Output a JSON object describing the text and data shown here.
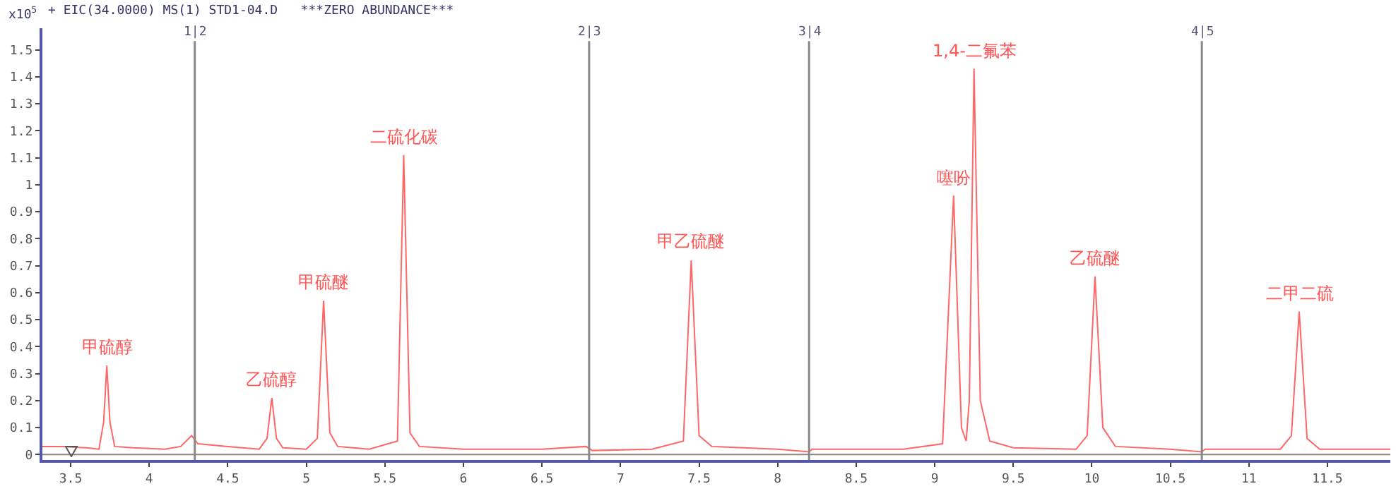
{
  "chart_data": {
    "type": "line",
    "title": "+ EIC(34.0000) MS(1) STD1-04.D   ***ZERO ABUNDANCE***",
    "ylabel": "x10$^{5}$",
    "xlim": [
      3.32,
      11.9
    ],
    "xticks": [
      3.5,
      4,
      4.5,
      5,
      5.5,
      6,
      6.5,
      7,
      7.5,
      8,
      8.5,
      9,
      9.5,
      10,
      10.5,
      11,
      11.5
    ],
    "ylim": [
      -0.02,
      1.58
    ],
    "yticks": [
      0,
      0.1,
      0.2,
      0.3,
      0.4,
      0.5,
      0.6,
      0.7,
      0.8,
      0.9,
      1,
      1.1,
      1.2,
      1.3,
      1.4,
      1.5
    ],
    "grid": false,
    "series": [
      {
        "color": "#ff6666",
        "x": [
          3.32,
          3.45,
          3.6,
          3.68,
          3.71,
          3.73,
          3.75,
          3.78,
          3.9,
          4.1,
          4.2,
          4.27,
          4.31,
          4.5,
          4.7,
          4.75,
          4.78,
          4.81,
          4.85,
          5.0,
          5.07,
          5.11,
          5.15,
          5.2,
          5.4,
          5.58,
          5.62,
          5.66,
          5.72,
          6.0,
          6.5,
          6.78,
          6.82,
          7.2,
          7.4,
          7.45,
          7.5,
          7.58,
          8.0,
          8.2,
          8.22,
          8.8,
          9.05,
          9.12,
          9.17,
          9.2,
          9.22,
          9.25,
          9.29,
          9.35,
          9.5,
          9.9,
          9.97,
          10.02,
          10.07,
          10.15,
          10.5,
          10.7,
          10.72,
          11.2,
          11.27,
          11.32,
          11.37,
          11.45,
          11.9
        ],
        "values": [
          0.03,
          0.03,
          0.025,
          0.02,
          0.12,
          0.33,
          0.12,
          0.03,
          0.025,
          0.02,
          0.03,
          0.07,
          0.04,
          0.03,
          0.02,
          0.06,
          0.21,
          0.06,
          0.025,
          0.02,
          0.06,
          0.57,
          0.08,
          0.03,
          0.02,
          0.05,
          1.11,
          0.08,
          0.03,
          0.02,
          0.02,
          0.03,
          0.015,
          0.02,
          0.05,
          0.72,
          0.07,
          0.03,
          0.02,
          0.01,
          0.02,
          0.02,
          0.04,
          0.96,
          0.1,
          0.05,
          0.2,
          1.43,
          0.2,
          0.05,
          0.025,
          0.02,
          0.07,
          0.66,
          0.1,
          0.03,
          0.02,
          0.01,
          0.02,
          0.02,
          0.07,
          0.53,
          0.06,
          0.02,
          0.02
        ]
      }
    ],
    "ref_lines": [
      {
        "axis": "x",
        "value": 4.29,
        "color": "#888888"
      },
      {
        "axis": "x",
        "value": 6.8,
        "color": "#888888"
      },
      {
        "axis": "x",
        "value": 8.2,
        "color": "#888888"
      },
      {
        "axis": "x",
        "value": 10.7,
        "color": "#888888"
      },
      {
        "axis": "y",
        "value": 0,
        "color": "#888888"
      }
    ],
    "annotations": [
      {
        "text": "1|2",
        "x": 4.29,
        "y": 1.53
      },
      {
        "text": "2|3",
        "x": 6.8,
        "y": 1.53
      },
      {
        "text": "3|4",
        "x": 8.2,
        "y": 1.53
      },
      {
        "text": "4|5",
        "x": 10.7,
        "y": 1.53
      },
      {
        "text": "甲硫醇",
        "x": 3.73,
        "y": 0.33
      },
      {
        "text": "乙硫醇",
        "x": 4.78,
        "y": 0.21
      },
      {
        "text": "甲硫醚",
        "x": 5.11,
        "y": 0.57
      },
      {
        "text": "二硫化碳",
        "x": 5.62,
        "y": 1.11
      },
      {
        "text": "甲乙硫醚",
        "x": 7.45,
        "y": 0.72
      },
      {
        "text": "噻吩",
        "x": 9.12,
        "y": 0.96
      },
      {
        "text": "1,4-二氟苯",
        "x": 9.25,
        "y": 1.43
      },
      {
        "text": "乙硫醚",
        "x": 10.02,
        "y": 0.66
      },
      {
        "text": "二甲二硫",
        "x": 11.32,
        "y": 0.53
      }
    ]
  }
}
